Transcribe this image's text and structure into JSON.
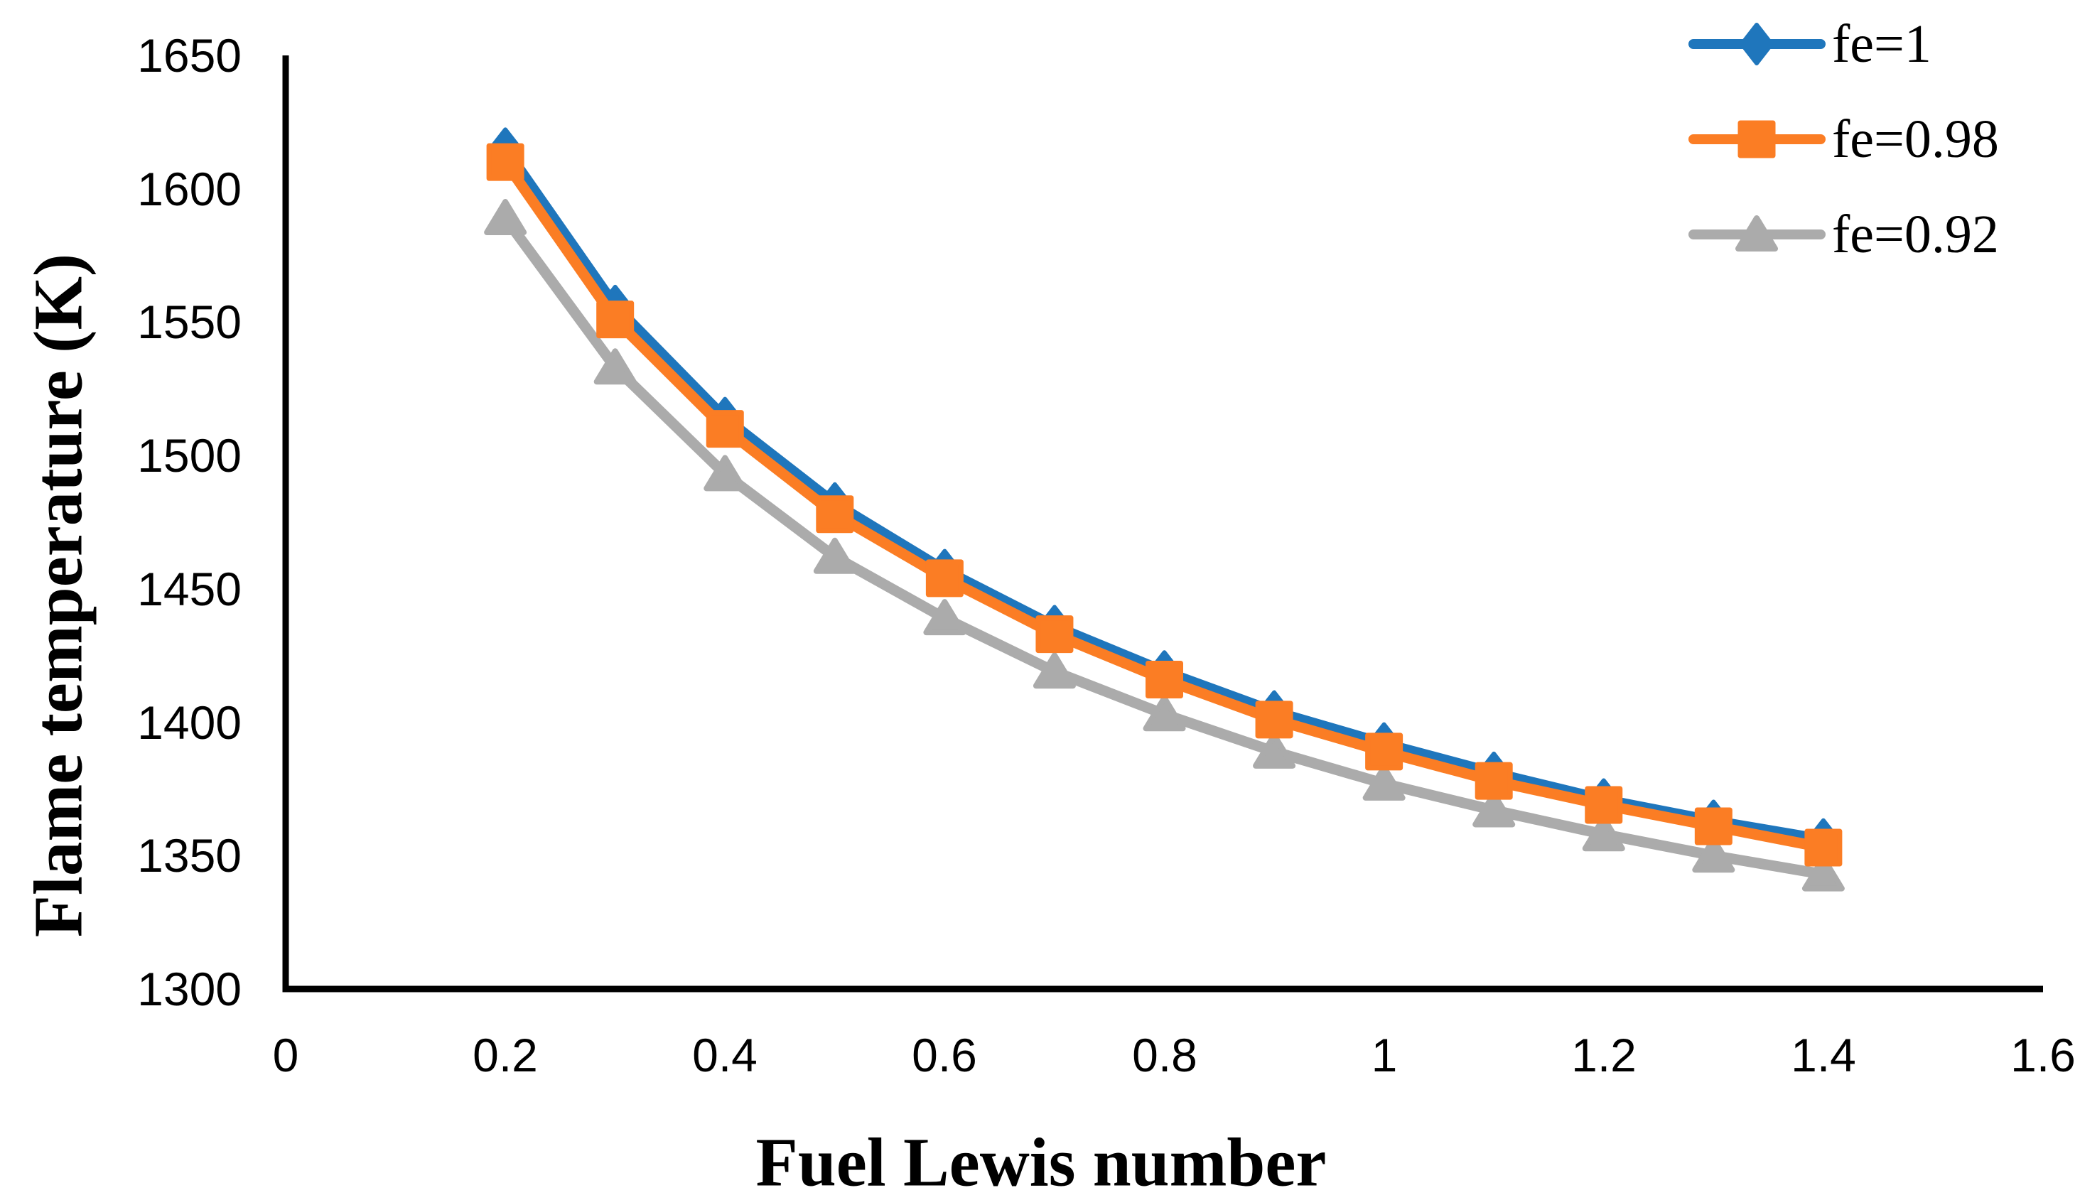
{
  "chart_data": {
    "type": "line",
    "title": "",
    "xlabel": "Fuel Lewis number",
    "ylabel": "Flame temperature (K)",
    "xlim": [
      0,
      1.6
    ],
    "ylim": [
      1300,
      1650
    ],
    "grid": false,
    "legend_position": "top-right",
    "axis_color": "#000000",
    "background_color": "#ffffff",
    "x_ticks": [
      "0",
      "0.2",
      "0.4",
      "0.6",
      "0.8",
      "1",
      "1.2",
      "1.4",
      "1.6"
    ],
    "y_ticks": [
      "1650",
      "1600",
      "1550",
      "1500",
      "1450",
      "1400",
      "1350",
      "1300"
    ],
    "x": [
      0.2,
      0.3,
      0.4,
      0.5,
      0.6,
      0.7,
      0.8,
      0.9,
      1.0,
      1.1,
      1.2,
      1.3,
      1.4
    ],
    "series": [
      {
        "name": "fe=1",
        "marker": "diamond",
        "color": "#1F76BC",
        "values": [
          1615,
          1556,
          1514,
          1482,
          1457,
          1436,
          1419,
          1404,
          1392,
          1381,
          1371,
          1363,
          1356
        ]
      },
      {
        "name": "fe=0.98",
        "marker": "square",
        "color": "#FB7D24",
        "values": [
          1610,
          1551,
          1510,
          1478,
          1454,
          1433,
          1416,
          1401,
          1389,
          1378,
          1369,
          1361,
          1353
        ]
      },
      {
        "name": "fe=0.92",
        "marker": "triangle",
        "color": "#ABABAB",
        "values": [
          1589,
          1533,
          1493,
          1462,
          1439,
          1419,
          1403,
          1389,
          1377,
          1367,
          1358,
          1350,
          1343
        ]
      }
    ]
  }
}
